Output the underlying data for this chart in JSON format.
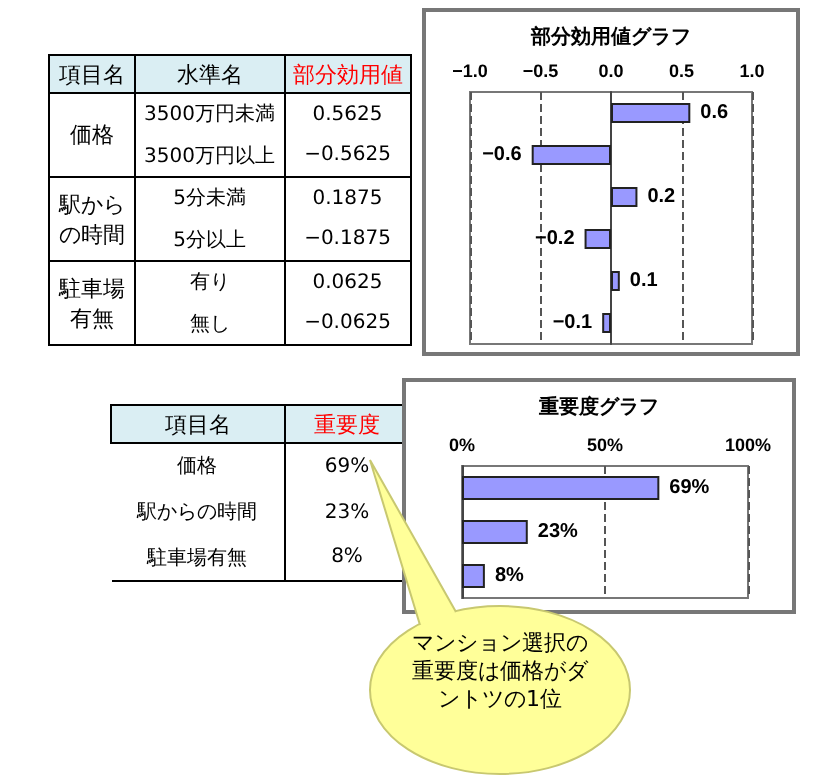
{
  "chart_data": [
    {
      "type": "other",
      "annotations": [
        "項目名",
        "水準名",
        "部分効用値",
        "価格",
        "3500万円未満",
        "0.5625",
        "3500万円以上",
        "−0.5625",
        "駅からの時間",
        "5分未満",
        "0.1875",
        "5分以上",
        "−0.1875",
        "駐車場有無",
        "有り",
        "0.0625",
        "無し",
        "−0.0625"
      ]
    },
    {
      "type": "bar",
      "orientation": "horizontal",
      "title": "部分効用値グラフ",
      "categories": [
        null,
        null,
        null,
        null,
        null,
        null
      ],
      "values": [
        0.5625,
        -0.5625,
        0.1875,
        -0.1875,
        0.0625,
        -0.0625
      ],
      "value_labels": [
        "0.6",
        "−0.6",
        "0.2",
        "−0.2",
        "0.1",
        "−0.1"
      ],
      "color": "#9999ff",
      "xlim": [
        -1,
        1
      ],
      "xticks": [
        {
          "value": -1,
          "label": "−1.0"
        },
        {
          "value": -0.5,
          "label": "−0.5"
        },
        {
          "value": 0,
          "label": "0.0"
        },
        {
          "value": 0.5,
          "label": "0.5"
        },
        {
          "value": 1,
          "label": "1.0"
        }
      ],
      "grid": "x"
    },
    {
      "type": "other",
      "annotations": [
        "項目名",
        "重要度",
        "価格",
        "69%",
        "駅からの時間",
        "23%",
        "駐車場有無",
        "8%",
        "マンション選択の重要度は価格がダントツの1位"
      ]
    },
    {
      "type": "bar",
      "orientation": "horizontal",
      "title": "重要度グラフ",
      "categories": [
        null,
        null,
        null
      ],
      "values": [
        69,
        23,
        8
      ],
      "value_labels": [
        "69%",
        "23%",
        "8%"
      ],
      "color": "#9999ff",
      "xlim": [
        0,
        100
      ],
      "xticks": [
        {
          "value": 0,
          "label": "0%"
        },
        {
          "value": 50,
          "label": "50%"
        },
        {
          "value": 100,
          "label": "100%"
        }
      ],
      "grid": "x"
    }
  ]
}
